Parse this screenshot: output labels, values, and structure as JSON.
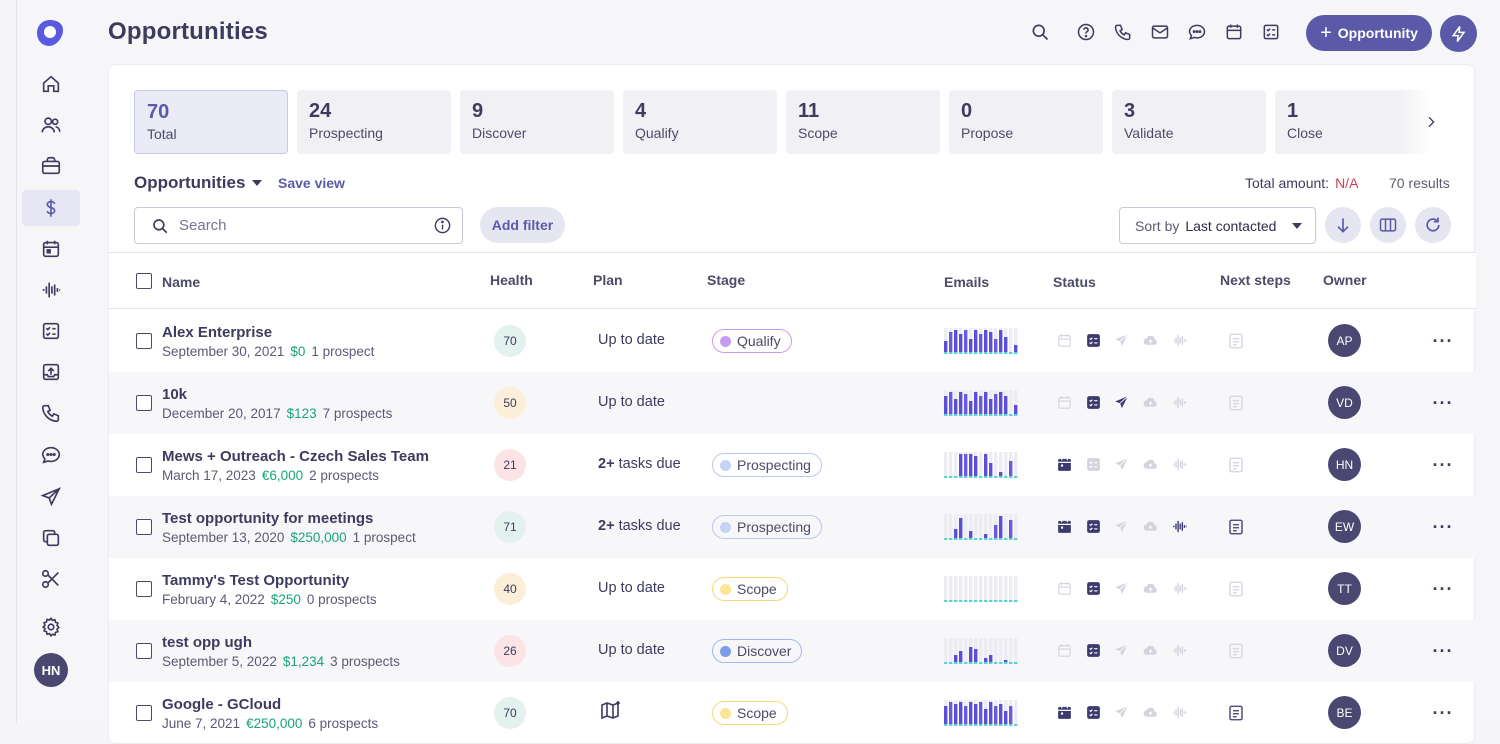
{
  "page": {
    "title": "Opportunities"
  },
  "header": {
    "new_button_label": "Opportunity",
    "icons": [
      "search-icon",
      "help-icon",
      "phone-icon",
      "mail-icon",
      "chat-icon",
      "calendar-icon",
      "tasks-icon"
    ]
  },
  "sidebar": {
    "items": [
      {
        "name": "home-icon"
      },
      {
        "name": "people-icon"
      },
      {
        "name": "briefcase-icon"
      },
      {
        "name": "dollar-icon",
        "active": true
      },
      {
        "name": "calendar-icon"
      },
      {
        "name": "waveform-icon"
      },
      {
        "name": "tasks-icon"
      },
      {
        "name": "upload-icon"
      },
      {
        "name": "phone-icon"
      },
      {
        "name": "chat-icon"
      },
      {
        "name": "send-icon"
      },
      {
        "name": "copy-icon"
      },
      {
        "name": "scissors-icon"
      },
      {
        "name": "gear-icon"
      }
    ],
    "avatar": "HN"
  },
  "stage_tabs": [
    {
      "count": "70",
      "label": "Total",
      "active": true
    },
    {
      "count": "24",
      "label": "Prospecting"
    },
    {
      "count": "9",
      "label": "Discover"
    },
    {
      "count": "4",
      "label": "Qualify"
    },
    {
      "count": "11",
      "label": "Scope"
    },
    {
      "count": "0",
      "label": "Propose"
    },
    {
      "count": "3",
      "label": "Validate"
    },
    {
      "count": "1",
      "label": "Close"
    }
  ],
  "toolbar": {
    "view_name": "Opportunities",
    "save_view": "Save view",
    "total_amount_label": "Total amount:",
    "total_amount_value": "N/A",
    "results": "70 results",
    "search_placeholder": "Search",
    "add_filter": "Add filter",
    "sort_label": "Sort by",
    "sort_value": "Last contacted"
  },
  "columns": {
    "name": "Name",
    "health": "Health",
    "plan": "Plan",
    "stage": "Stage",
    "emails": "Emails",
    "status": "Status",
    "next_steps": "Next steps",
    "owner": "Owner"
  },
  "colors": {
    "accent": "#5a5aa8",
    "amount_green": "#18a37a",
    "na_red": "#d23b54",
    "bar_purple": "#6a5ae0",
    "bar_cyan": "#5ad4d4"
  },
  "rows": [
    {
      "name": "Alex Enterprise",
      "date": "September 30, 2021",
      "amount": "$0",
      "prospects": "1 prospect",
      "health": "70",
      "health_level": "good",
      "plan": "Up to date",
      "plan_bold": "",
      "stage": "Qualify",
      "stage_color": "#c79cf0",
      "stage_border": "#c79cf0",
      "emails": [
        5,
        9,
        10,
        8,
        10,
        6,
        10,
        8,
        10,
        9,
        6,
        10,
        7,
        0,
        3
      ],
      "status_active": [
        false,
        true,
        false,
        false,
        false
      ],
      "next_active": false,
      "owner": "AP"
    },
    {
      "name": "10k",
      "date": "December 20, 2017",
      "amount": "$123",
      "prospects": "7 prospects",
      "health": "50",
      "health_level": "mid",
      "plan": "Up to date",
      "plan_bold": "",
      "stage": "",
      "stage_color": "",
      "stage_border": "",
      "emails": [
        8,
        10,
        7,
        10,
        9,
        6,
        10,
        8,
        10,
        7,
        9,
        10,
        8,
        0,
        4
      ],
      "status_active": [
        false,
        true,
        true,
        false,
        false
      ],
      "next_active": false,
      "owner": "VD"
    },
    {
      "name": "Mews + Outreach - Czech Sales Team",
      "date": "March 17, 2023",
      "amount": "€6,000",
      "prospects": "2 prospects",
      "health": "21",
      "health_level": "bad",
      "plan": "tasks due",
      "plan_bold": "2+",
      "stage": "Prospecting",
      "stage_color": "#c7d3f5",
      "stage_border": "#bcc8ee",
      "emails": [
        0,
        0,
        0,
        10,
        10,
        10,
        9,
        0,
        10,
        6,
        0,
        2,
        0,
        7,
        0
      ],
      "status_active": [
        true,
        false,
        false,
        false,
        false
      ],
      "next_active": false,
      "owner": "HN"
    },
    {
      "name": "Test opportunity for meetings",
      "date": "September 13, 2020",
      "amount": "$250,000",
      "prospects": "1 prospect",
      "health": "71",
      "health_level": "good",
      "plan": "tasks due",
      "plan_bold": "2+",
      "stage": "Prospecting",
      "stage_color": "#c7d3f5",
      "stage_border": "#bcc8ee",
      "emails": [
        0,
        0,
        4,
        9,
        0,
        3,
        0,
        0,
        2,
        0,
        6,
        10,
        0,
        8,
        0
      ],
      "status_active": [
        true,
        true,
        false,
        false,
        true
      ],
      "next_active": true,
      "owner": "EW"
    },
    {
      "name": "Tammy's Test Opportunity",
      "date": "February 4, 2022",
      "amount": "$250",
      "prospects": "0 prospects",
      "health": "40",
      "health_level": "mid",
      "plan": "Up to date",
      "plan_bold": "",
      "stage": "Scope",
      "stage_color": "#fce596",
      "stage_border": "#f3d97a",
      "emails": [
        0,
        0,
        0,
        0,
        0,
        0,
        0,
        0,
        0,
        0,
        0,
        0,
        0,
        0,
        0
      ],
      "status_active": [
        false,
        true,
        false,
        false,
        false
      ],
      "next_active": false,
      "owner": "TT"
    },
    {
      "name": "test opp ugh",
      "date": "September 5, 2022",
      "amount": "$1,234",
      "prospects": "3 prospects",
      "health": "26",
      "health_level": "bad",
      "plan": "Up to date",
      "plan_bold": "",
      "stage": "Discover",
      "stage_color": "#7c9be8",
      "stage_border": "#a3b7ee",
      "emails": [
        0,
        0,
        3,
        5,
        0,
        7,
        6,
        0,
        2,
        3,
        0,
        0,
        1,
        0,
        0
      ],
      "status_active": [
        false,
        true,
        false,
        false,
        false
      ],
      "next_active": false,
      "owner": "DV"
    },
    {
      "name": "Google - GCloud",
      "date": "June 7, 2021",
      "amount": "€250,000",
      "prospects": "6 prospects",
      "health": "70",
      "health_level": "good",
      "plan": "",
      "plan_bold": "",
      "stage": "Scope",
      "stage_color": "#fce596",
      "stage_border": "#f3d97a",
      "emails": [
        8,
        10,
        9,
        10,
        8,
        10,
        9,
        10,
        7,
        10,
        8,
        9,
        6,
        8,
        0
      ],
      "status_active": [
        true,
        true,
        false,
        false,
        false
      ],
      "next_active": true,
      "owner": "BE"
    }
  ]
}
